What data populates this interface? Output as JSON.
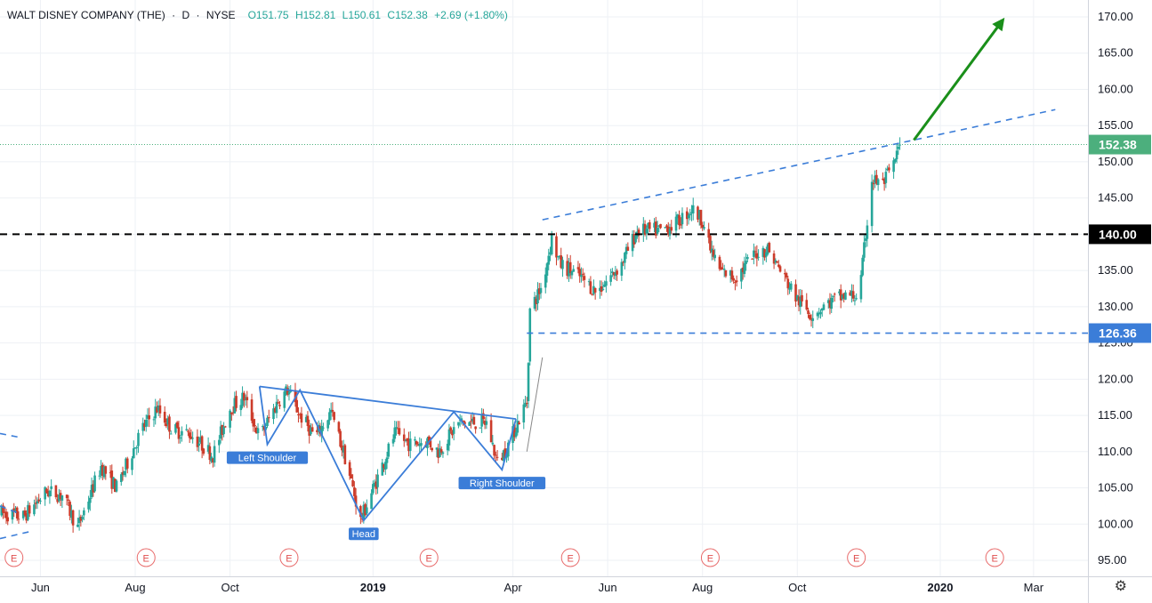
{
  "header": {
    "symbol": "WALT DISNEY COMPANY (THE)",
    "interval": "D",
    "exchange": "NYSE",
    "open": "O151.75",
    "high": "H152.81",
    "low": "L150.61",
    "close": "C152.38",
    "change": "+2.69 (+1.80%)"
  },
  "chart_data": {
    "type": "candlestick",
    "title": "WALT DISNEY COMPANY (THE) · D · NYSE",
    "ylim": [
      93.5,
      171.5
    ],
    "y_ticks": [
      95,
      100,
      105,
      110,
      115,
      120,
      125,
      130,
      135,
      140,
      145,
      150,
      155,
      160,
      165,
      170
    ],
    "y_tick_labels": [
      "95.00",
      "100.00",
      "105.00",
      "110.00",
      "115.00",
      "120.00",
      "125.00",
      "130.00",
      "135.00",
      "140.00",
      "145.00",
      "150.00",
      "155.00",
      "160.00",
      "165.00",
      "170.00"
    ],
    "x_range": [
      "2018-05-06",
      "2020-04-05"
    ],
    "x_ticks": [
      {
        "date": "2018-06-01",
        "label": "Jun",
        "bold": false
      },
      {
        "date": "2018-08-01",
        "label": "Aug",
        "bold": false
      },
      {
        "date": "2018-10-01",
        "label": "Oct",
        "bold": false
      },
      {
        "date": "2019-01-01",
        "label": "2019",
        "bold": true
      },
      {
        "date": "2019-04-01",
        "label": "Apr",
        "bold": false
      },
      {
        "date": "2019-06-01",
        "label": "Jun",
        "bold": false
      },
      {
        "date": "2019-08-01",
        "label": "Aug",
        "bold": false
      },
      {
        "date": "2019-10-01",
        "label": "Oct",
        "bold": false
      },
      {
        "date": "2020-01-01",
        "label": "2020",
        "bold": true
      },
      {
        "date": "2020-03-01",
        "label": "Mar",
        "bold": false
      }
    ],
    "price_path": [
      [
        "2018-05-07",
        101.5
      ],
      [
        "2018-05-21",
        101.0
      ],
      [
        "2018-06-05",
        104.5
      ],
      [
        "2018-06-15",
        104.0
      ],
      [
        "2018-06-25",
        99.5
      ],
      [
        "2018-07-10",
        108.0
      ],
      [
        "2018-07-20",
        105.0
      ],
      [
        "2018-08-05",
        113.0
      ],
      [
        "2018-08-15",
        116.0
      ],
      [
        "2018-08-25",
        113.0
      ],
      [
        "2018-09-05",
        112.5
      ],
      [
        "2018-09-20",
        109.5
      ],
      [
        "2018-10-01",
        116.0
      ],
      [
        "2018-10-10",
        117.5
      ],
      [
        "2018-10-20",
        112.0
      ],
      [
        "2018-11-01",
        117.0
      ],
      [
        "2018-11-07",
        118.5
      ],
      [
        "2018-11-15",
        115.0
      ],
      [
        "2018-11-25",
        112.0
      ],
      [
        "2018-12-05",
        115.5
      ],
      [
        "2018-12-15",
        108.5
      ],
      [
        "2018-12-24",
        100.5
      ],
      [
        "2019-01-05",
        107.0
      ],
      [
        "2019-01-15",
        112.5
      ],
      [
        "2019-01-25",
        111.0
      ],
      [
        "2019-02-05",
        111.5
      ],
      [
        "2019-02-12",
        110.0
      ],
      [
        "2019-02-25",
        114.0
      ],
      [
        "2019-03-05",
        114.0
      ],
      [
        "2019-03-15",
        114.0
      ],
      [
        "2019-03-22",
        108.5
      ],
      [
        "2019-03-28",
        110.5
      ],
      [
        "2019-04-05",
        114.5
      ],
      [
        "2019-04-10",
        117.0
      ],
      [
        "2019-04-12",
        129.5
      ],
      [
        "2019-04-20",
        133.0
      ],
      [
        "2019-04-26",
        139.5
      ],
      [
        "2019-05-01",
        136.0
      ],
      [
        "2019-05-15",
        134.0
      ],
      [
        "2019-05-25",
        132.0
      ],
      [
        "2019-06-10",
        136.0
      ],
      [
        "2019-06-20",
        140.5
      ],
      [
        "2019-07-05",
        140.5
      ],
      [
        "2019-07-15",
        141.5
      ],
      [
        "2019-07-25",
        143.5
      ],
      [
        "2019-08-01",
        142.0
      ],
      [
        "2019-08-05",
        138.5
      ],
      [
        "2019-08-12",
        135.0
      ],
      [
        "2019-08-22",
        134.0
      ],
      [
        "2019-09-05",
        137.5
      ],
      [
        "2019-09-12",
        138.0
      ],
      [
        "2019-09-20",
        135.0
      ],
      [
        "2019-10-01",
        131.0
      ],
      [
        "2019-10-10",
        129.0
      ],
      [
        "2019-10-25",
        131.0
      ],
      [
        "2019-11-01",
        131.5
      ],
      [
        "2019-11-10",
        131.5
      ],
      [
        "2019-11-14",
        140.0
      ],
      [
        "2019-11-18",
        147.5
      ],
      [
        "2019-11-25",
        147.0
      ],
      [
        "2019-12-02",
        149.5
      ],
      [
        "2019-12-06",
        152.38
      ]
    ],
    "last_price": 152.38,
    "price_labels": [
      {
        "value": 152.38,
        "text": "152.38",
        "color": "#4caf7d"
      },
      {
        "value": 140.0,
        "text": "140.00",
        "color": "#000000"
      },
      {
        "value": 126.36,
        "text": "126.36",
        "color": "#3b7dd8"
      }
    ],
    "horizontal_lines": [
      {
        "value": 140.0,
        "style": "black-dashed"
      },
      {
        "value": 126.36,
        "from": "2019-04-10",
        "style": "blue-dashed"
      }
    ],
    "trend_lines": [
      {
        "from": [
          "2019-04-20",
          142.0
        ],
        "to": [
          "2020-03-15",
          157.2
        ],
        "style": "blue-dashed"
      },
      {
        "from": [
          "2018-05-06",
          102.5
        ],
        "to": [
          "2018-05-18",
          101.5
        ],
        "style": "blue-dashed"
      },
      {
        "from": [
          "2018-05-06",
          98.0
        ],
        "to": [
          "2018-05-26",
          99.0
        ],
        "style": "blue-dashed"
      },
      {
        "from": [
          "2018-05-06",
          112.5
        ],
        "to": [
          "2018-05-18",
          112.0
        ],
        "style": "blue-dashed"
      },
      {
        "from": [
          "2019-04-10",
          110.0
        ],
        "to": [
          "2019-04-20",
          123.0
        ],
        "style": "gray-solid"
      }
    ],
    "head_and_shoulders": {
      "neckline": [
        [
          "2018-10-20",
          119.0
        ],
        [
          "2019-04-03",
          114.5
        ]
      ],
      "pattern": [
        [
          "2018-10-20",
          119.0
        ],
        [
          "2018-10-25",
          111.0
        ],
        [
          "2018-11-15",
          118.5
        ],
        [
          "2018-12-26",
          100.5
        ],
        [
          "2019-02-22",
          115.5
        ],
        [
          "2019-03-25",
          107.5
        ],
        [
          "2019-04-03",
          114.5
        ]
      ],
      "left_shoulder_date": "2018-10-25",
      "left_shoulder_value": 111.0,
      "head_date": "2018-12-26",
      "head_value": 100.5,
      "right_shoulder_date": "2019-03-25",
      "right_shoulder_value": 107.5
    },
    "arrow": {
      "from": [
        "2019-12-15",
        153.0
      ],
      "to": [
        "2020-02-10",
        169.5
      ],
      "color": "#1a8f1a"
    },
    "annotations": [
      "Left Shoulder",
      "Head",
      "Right Shoulder"
    ],
    "earnings_marker": "E",
    "earnings_dates": [
      "2018-05-15",
      "2018-08-08",
      "2018-11-08",
      "2019-02-06",
      "2019-05-08",
      "2019-08-06",
      "2019-11-08",
      "2020-02-05"
    ],
    "colors": {
      "up": "#26a69a",
      "down": "#cc3b2a",
      "pattern": "#3b7dd8",
      "grid": "#eef1f5"
    }
  }
}
